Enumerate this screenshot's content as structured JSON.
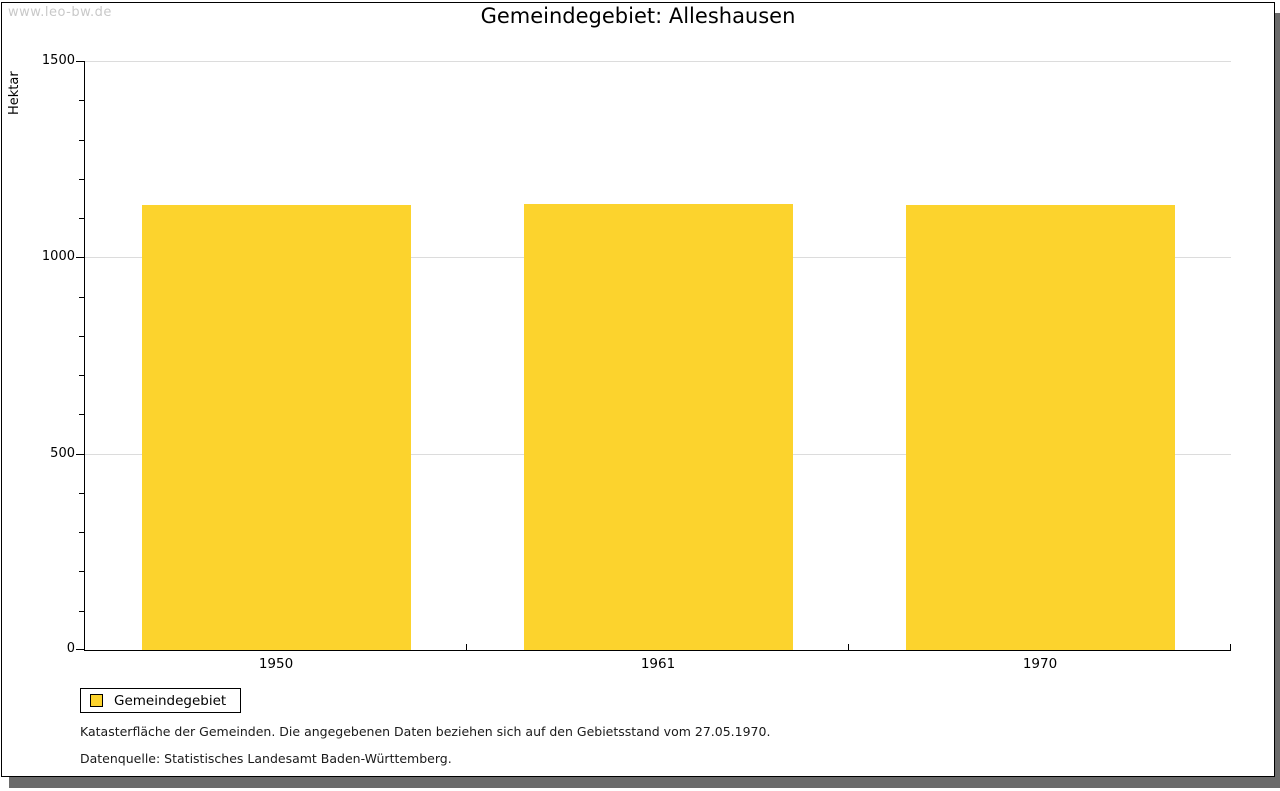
{
  "watermark": "www.leo-bw.de",
  "chart_data": {
    "type": "bar",
    "title": "Gemeindegebiet: Alleshausen",
    "categories": [
      "1950",
      "1961",
      "1970"
    ],
    "series": [
      {
        "name": "Gemeindegebiet",
        "values": [
          1133,
          1135,
          1134
        ],
        "color": "#FCD32D"
      }
    ],
    "ylabel": "Hektar",
    "ylim": [
      0,
      1500
    ],
    "ytick_major": [
      0,
      500,
      1000,
      1500
    ],
    "ytick_minor_step": 100,
    "grid": "horizontal lines at major ticks",
    "legend_position": "bottom-left"
  },
  "legend": {
    "items": [
      {
        "label": "Gemeindegebiet",
        "color": "#FCD32D"
      }
    ]
  },
  "footnotes": [
    "Katasterfläche der Gemeinden. Die angegebenen Daten beziehen sich auf den Gebietsstand vom 27.05.1970.",
    "Datenquelle: Statistisches Landesamt Baden-Württemberg."
  ],
  "colors": {
    "bar": "#FCD32D",
    "gridline": "#DCDCDC",
    "axis": "#000000",
    "text": "#000000",
    "watermark": "#C9C9C9",
    "frame_shadow": "#6B6B6B",
    "background": "#FFFFFF"
  }
}
